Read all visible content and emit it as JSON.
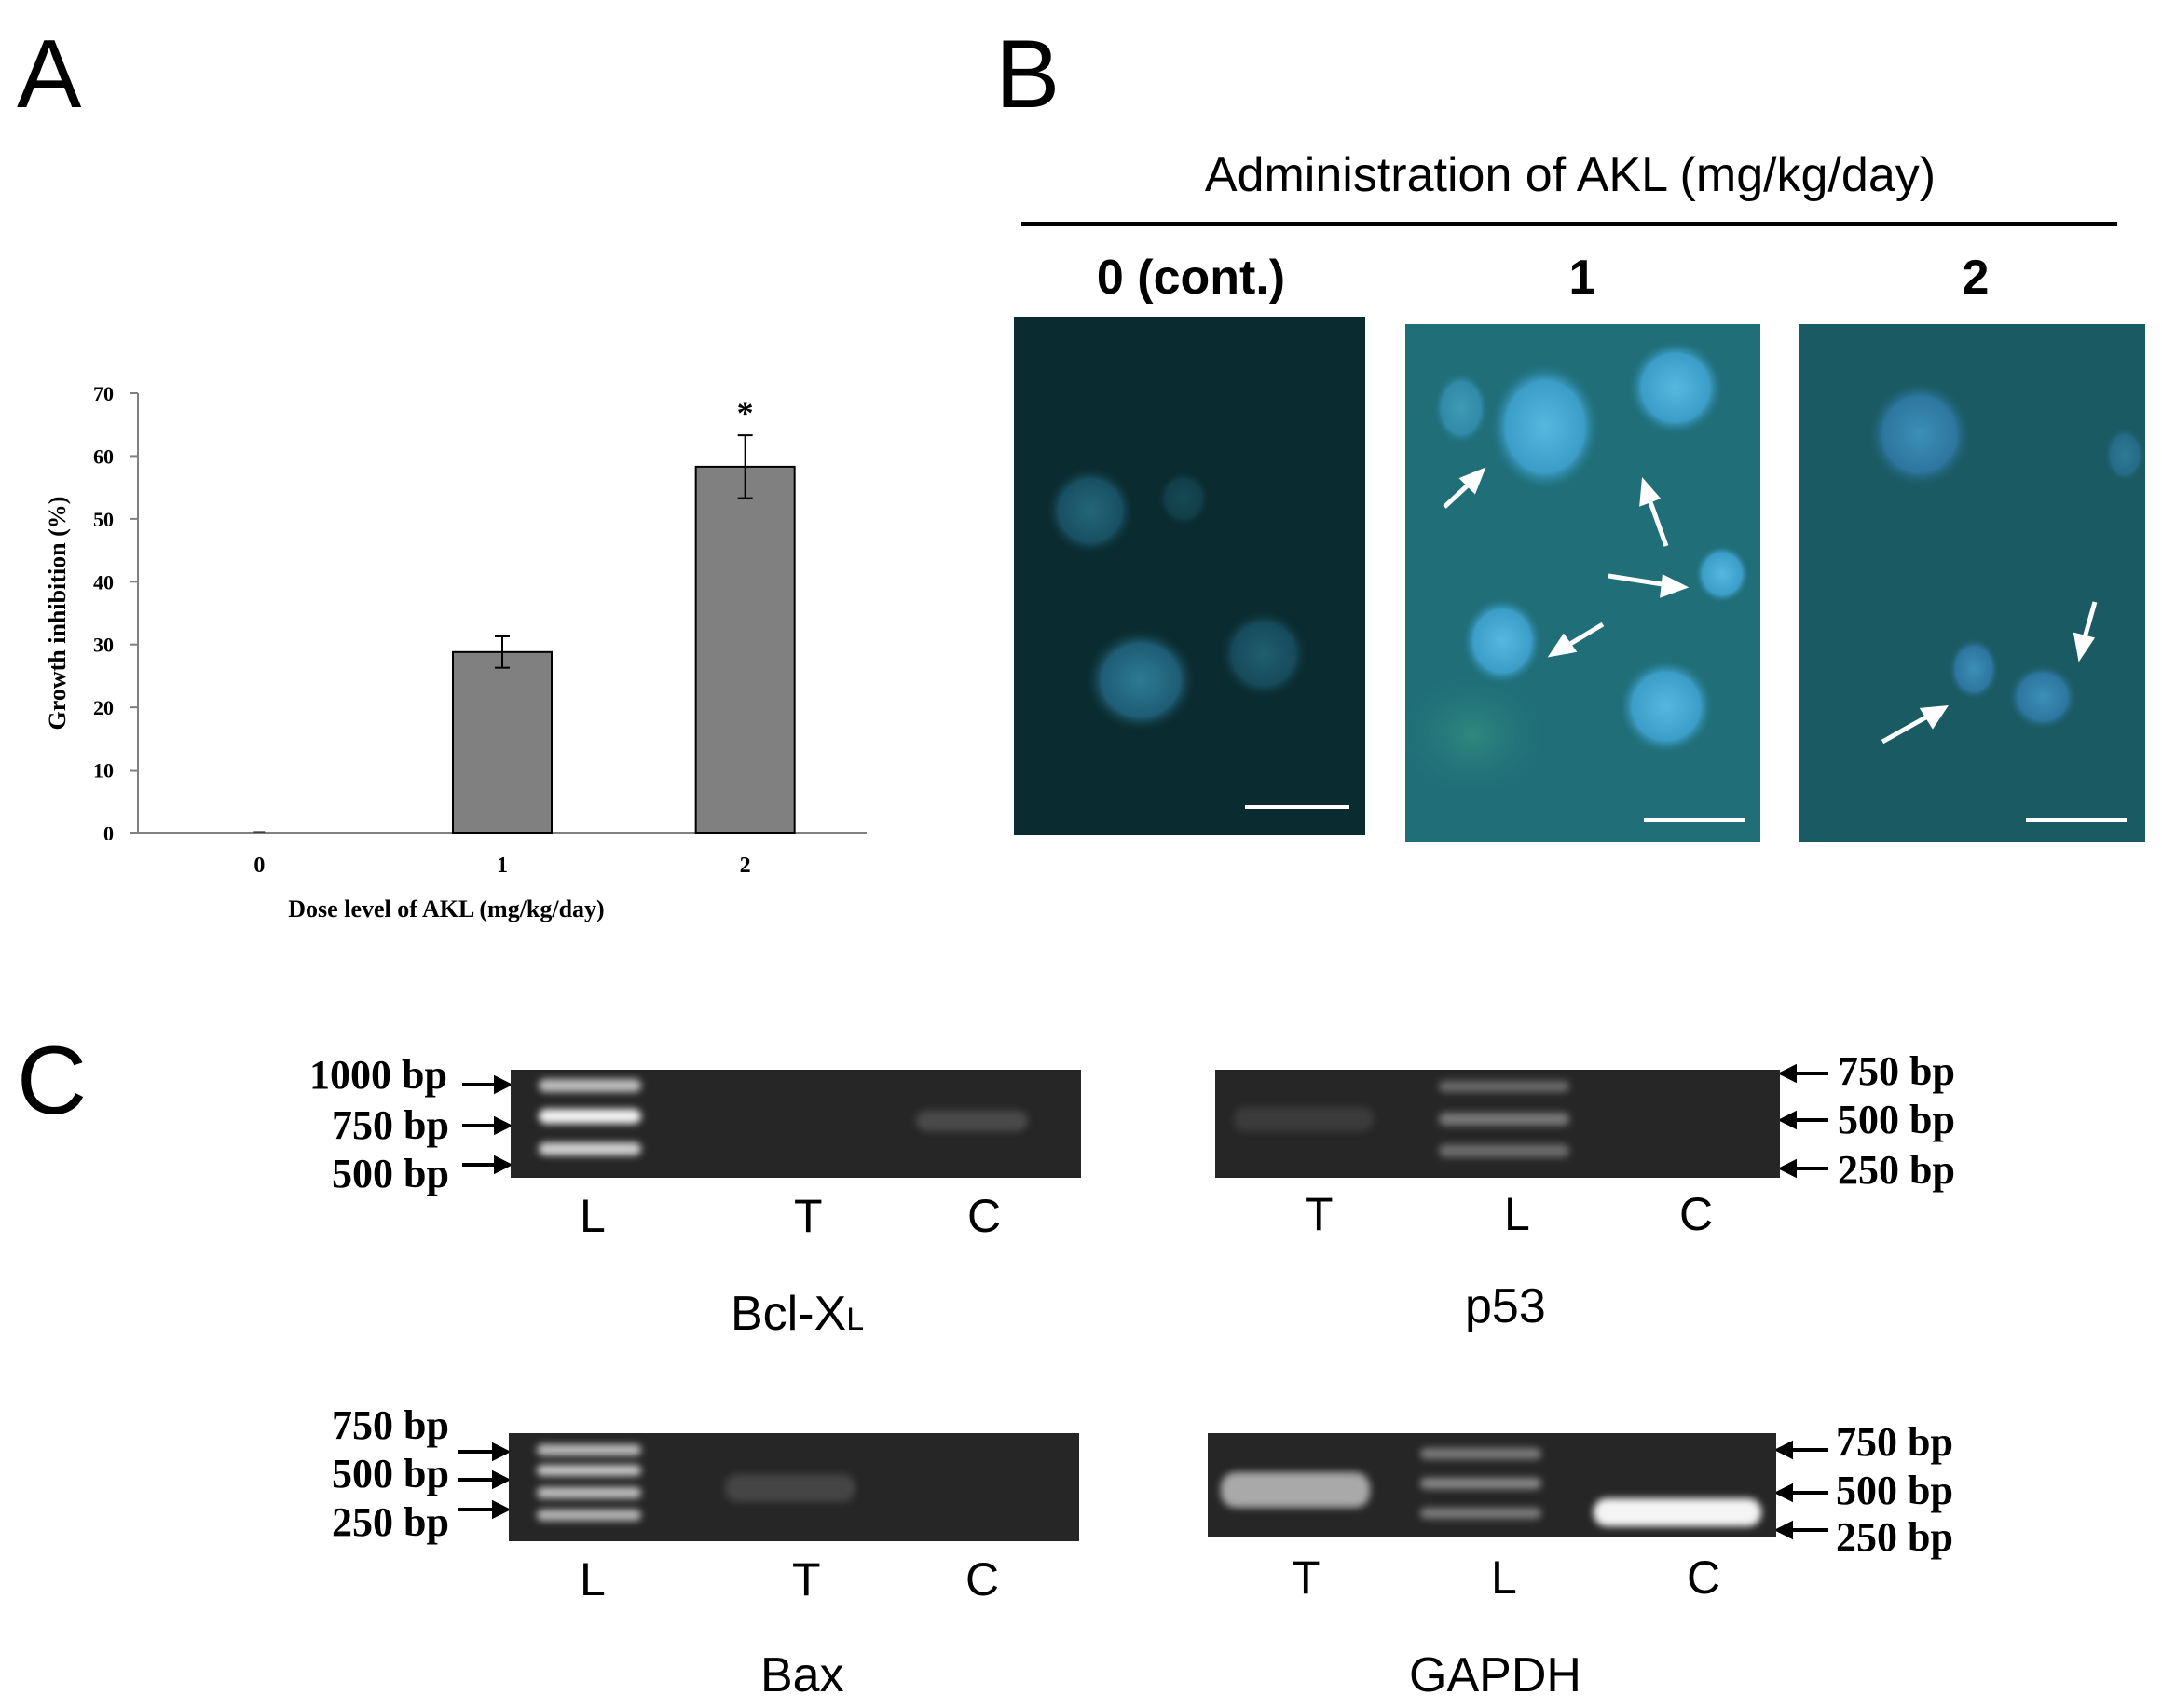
{
  "panels": {
    "a": {
      "letter": "A"
    },
    "b": {
      "letter": "B",
      "header": "Administration of AKL (mg/kg/day)",
      "groups": [
        "0 (cont.)",
        "1",
        "2"
      ]
    },
    "c": {
      "letter": "C"
    }
  },
  "chart_data": {
    "type": "bar",
    "categories": [
      "0",
      "1",
      "2"
    ],
    "values": [
      0,
      28.8,
      58.3
    ],
    "errors": [
      0,
      2.5,
      5.0
    ],
    "annotations": [
      "",
      "",
      "*"
    ],
    "xlabel": "Dose level of AKL (mg/kg/day)",
    "ylabel": "Growth inhibition (%)",
    "ylim": [
      0,
      70
    ],
    "yticks": [
      "0",
      "10",
      "20",
      "30",
      "40",
      "50",
      "60",
      "70"
    ],
    "bar_color": "#808080",
    "grid": false
  },
  "gels": {
    "bclxl": {
      "title_main": "Bcl-X",
      "title_sub": "L",
      "lanes": [
        "L",
        "T",
        "C"
      ],
      "markers": [
        "1000 bp",
        "750 bp",
        "500 bp"
      ]
    },
    "p53": {
      "title": "p53",
      "lanes": [
        "T",
        "L",
        "C"
      ],
      "markers": [
        "750 bp",
        "500 bp",
        "250 bp"
      ]
    },
    "bax": {
      "title": "Bax",
      "lanes": [
        "L",
        "T",
        "C"
      ],
      "markers": [
        "750 bp",
        "500 bp",
        "250 bp"
      ]
    },
    "gapdh": {
      "title": "GAPDH",
      "lanes": [
        "T",
        "L",
        "C"
      ],
      "markers": [
        "750 bp",
        "500 bp",
        "250 bp"
      ]
    }
  },
  "colors": {
    "micrograph_bg": "#0c3438",
    "nucleus": "#3fa0c8",
    "gel_bg": "#262626"
  }
}
